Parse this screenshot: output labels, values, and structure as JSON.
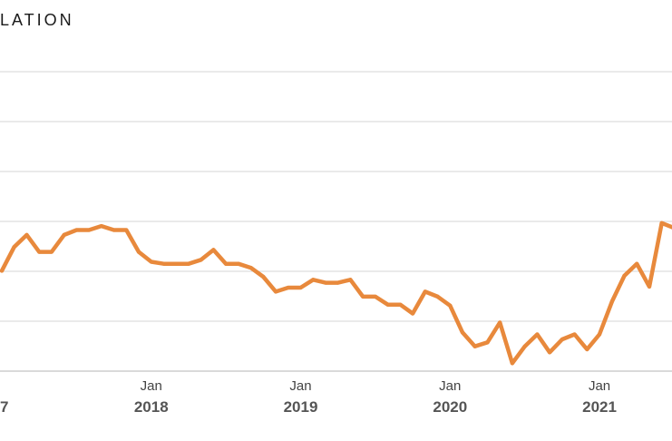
{
  "chart_data": {
    "type": "line",
    "title": "LATION",
    "xlabel": "",
    "ylabel": "",
    "grid": true,
    "legend": "none",
    "colors": {
      "line": "#e8893c"
    },
    "x_ticks": [
      {
        "date": "2017-01-01",
        "month": "",
        "year": "7"
      },
      {
        "date": "2018-01-01",
        "month": "Jan",
        "year": "2018"
      },
      {
        "date": "2019-01-01",
        "month": "Jan",
        "year": "2019"
      },
      {
        "date": "2020-01-01",
        "month": "Jan",
        "year": "2020"
      },
      {
        "date": "2021-01-01",
        "month": "Jan",
        "year": "2021"
      }
    ],
    "series": [
      {
        "x": [
          "2017-01",
          "2017-02",
          "2017-03",
          "2017-04",
          "2017-05",
          "2017-06",
          "2017-07",
          "2017-08",
          "2017-09",
          "2017-10",
          "2017-11",
          "2017-12",
          "2018-01",
          "2018-02",
          "2018-03",
          "2018-04",
          "2018-05",
          "2018-06",
          "2018-07",
          "2018-08",
          "2018-09",
          "2018-10",
          "2018-11",
          "2018-12",
          "2019-01",
          "2019-02",
          "2019-03",
          "2019-04",
          "2019-05",
          "2019-06",
          "2019-07",
          "2019-08",
          "2019-09",
          "2019-10",
          "2019-11",
          "2019-12",
          "2020-01",
          "2020-02",
          "2020-03",
          "2020-04",
          "2020-05",
          "2020-06",
          "2020-07",
          "2020-08",
          "2020-09",
          "2020-10",
          "2020-11",
          "2020-12",
          "2021-01",
          "2021-02",
          "2021-03",
          "2021-04",
          "2021-05",
          "2021-06",
          "2021-07",
          "2021-08"
        ],
        "values": [
          2.5,
          2.74,
          2.86,
          2.69,
          2.69,
          2.86,
          2.91,
          2.91,
          2.95,
          2.91,
          2.91,
          2.69,
          2.59,
          2.57,
          2.57,
          2.57,
          2.61,
          2.71,
          2.57,
          2.57,
          2.53,
          2.44,
          2.29,
          2.33,
          2.33,
          2.41,
          2.38,
          2.38,
          2.41,
          2.24,
          2.24,
          2.16,
          2.16,
          2.07,
          2.29,
          2.24,
          2.15,
          1.88,
          1.74,
          1.78,
          1.98,
          1.57,
          1.74,
          1.86,
          1.68,
          1.81,
          1.86,
          1.71,
          1.86,
          2.19,
          2.45,
          2.57,
          2.34,
          2.98,
          2.93,
          2.92
        ]
      }
    ],
    "ylim": [
      1.5,
      3.8
    ]
  }
}
